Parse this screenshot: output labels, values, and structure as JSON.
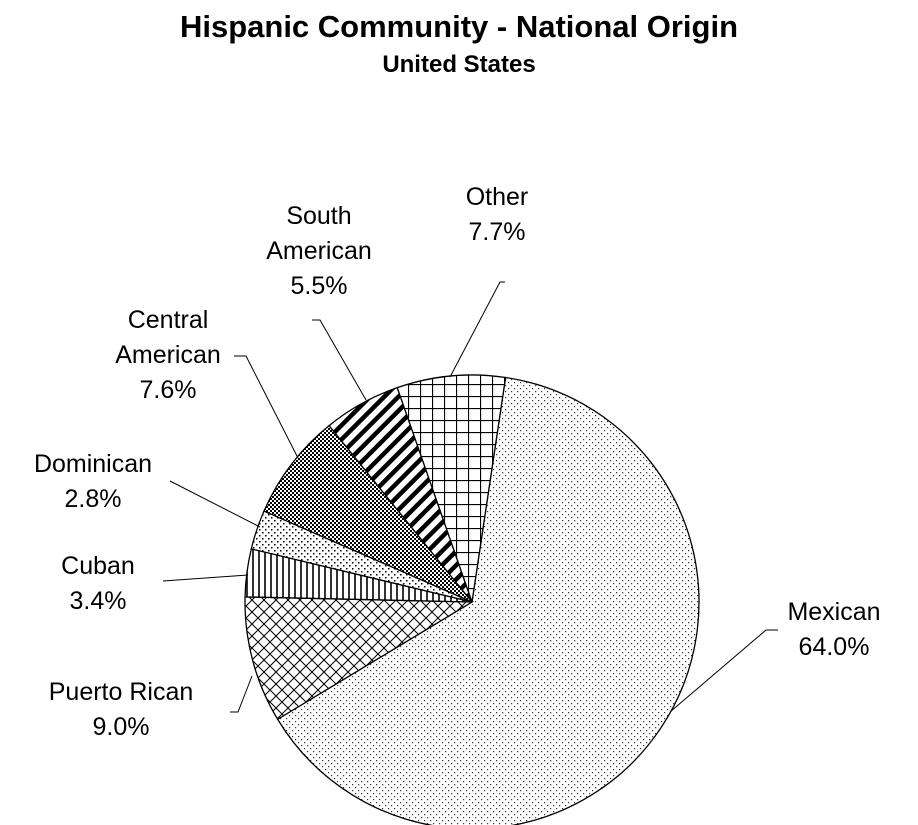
{
  "chart_data": {
    "type": "pie",
    "title": "Hispanic Community - National Origin",
    "subtitle": "United States",
    "slices": [
      {
        "name": "Mexican",
        "value": 64.0,
        "label_lines": [
          "Mexican",
          "64.0%"
        ],
        "pattern": "dots"
      },
      {
        "name": "Puerto Rican",
        "value": 9.0,
        "label_lines": [
          "Puerto Rican",
          "9.0%"
        ],
        "pattern": "crosshatch"
      },
      {
        "name": "Cuban",
        "value": 3.4,
        "label_lines": [
          "Cuban",
          "3.4%"
        ],
        "pattern": "vertical-lines"
      },
      {
        "name": "Dominican",
        "value": 2.8,
        "label_lines": [
          "Dominican",
          "2.8%"
        ],
        "pattern": "sparse-dots"
      },
      {
        "name": "Central American",
        "value": 7.6,
        "label_lines": [
          "Central",
          "American",
          "7.6%"
        ],
        "pattern": "checker"
      },
      {
        "name": "South American",
        "value": 5.5,
        "label_lines": [
          "South",
          "American",
          "5.5%"
        ],
        "pattern": "diagonal-stripes"
      },
      {
        "name": "Other",
        "value": 7.7,
        "label_lines": [
          "Other",
          "7.7%"
        ],
        "pattern": "grid"
      }
    ],
    "start": "top, clockwise from just right of vertical",
    "legend": "none (leader-line labels)"
  }
}
